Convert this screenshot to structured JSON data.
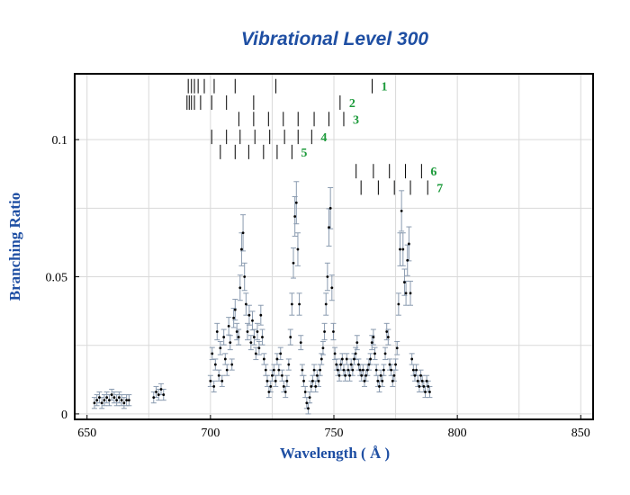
{
  "chart_data": {
    "type": "scatter",
    "title": "Vibrational Level 300",
    "xlabel": "Wavelength ( Å )",
    "ylabel": "Branching Ratio",
    "xlim": [
      645,
      855
    ],
    "ylim": [
      -0.002,
      0.124
    ],
    "xticks": [
      "650",
      "700",
      "750",
      "800",
      "850"
    ],
    "yticks": [
      "0",
      "0.05",
      "0.1"
    ],
    "grid": true,
    "colors": {
      "title": "#1f4fa3",
      "axis_label": "#1f4fa3",
      "point": "#000000",
      "errorbar": "#8a9bb0",
      "group_label": "#1e9b3c",
      "grid": "#d9d9d9"
    },
    "line_groups": [
      {
        "label": "1",
        "y": 0.1195,
        "x": [
          691,
          692.3,
          693.5,
          695,
          697.5,
          701.5,
          710,
          726.5,
          765.5
        ]
      },
      {
        "label": "2",
        "y": 0.1135,
        "x": [
          690.5,
          691.4,
          692.3,
          693.5,
          696,
          700.5,
          706.5,
          717.5,
          752.5
        ]
      },
      {
        "label": "3",
        "y": 0.1075,
        "x": [
          711.5,
          717.5,
          723.5,
          729.5,
          735.5,
          742,
          748,
          754
        ]
      },
      {
        "label": "4",
        "y": 0.101,
        "x": [
          700.5,
          706.5,
          712,
          718,
          724,
          730,
          735.5,
          741
        ]
      },
      {
        "label": "5",
        "y": 0.0955,
        "x": [
          704,
          710,
          715.5,
          721.5,
          727,
          733
        ]
      },
      {
        "label": "6",
        "y": 0.0885,
        "x": [
          759,
          766,
          772.5,
          779,
          785.5
        ]
      },
      {
        "label": "7",
        "y": 0.0825,
        "x": [
          761,
          768,
          774.5,
          781,
          788
        ]
      }
    ],
    "series": [
      {
        "values": [
          [
            653,
            0.004
          ],
          [
            654,
            0.005
          ],
          [
            655,
            0.006
          ],
          [
            656,
            0.004
          ],
          [
            657,
            0.005
          ],
          [
            658,
            0.006
          ],
          [
            659,
            0.005
          ],
          [
            660,
            0.007
          ],
          [
            661,
            0.006
          ],
          [
            662,
            0.005
          ],
          [
            663,
            0.006
          ],
          [
            664,
            0.005
          ],
          [
            665,
            0.004
          ],
          [
            666,
            0.005
          ],
          [
            667,
            0.005
          ],
          [
            677,
            0.006
          ],
          [
            678,
            0.008
          ],
          [
            679,
            0.007
          ],
          [
            680,
            0.009
          ],
          [
            681,
            0.007
          ],
          [
            700,
            0.012
          ],
          [
            700.7,
            0.022
          ],
          [
            701.4,
            0.01
          ],
          [
            702,
            0.018
          ],
          [
            702.7,
            0.03
          ],
          [
            703.4,
            0.014
          ],
          [
            704,
            0.024
          ],
          [
            704.7,
            0.012
          ],
          [
            705.4,
            0.028
          ],
          [
            706,
            0.02
          ],
          [
            706.7,
            0.016
          ],
          [
            707.4,
            0.032
          ],
          [
            708,
            0.026
          ],
          [
            708.7,
            0.018
          ],
          [
            709.4,
            0.035
          ],
          [
            710,
            0.038
          ],
          [
            710.7,
            0.03
          ],
          [
            711.4,
            0.028
          ],
          [
            712,
            0.046
          ],
          [
            712.6,
            0.06
          ],
          [
            713.2,
            0.066
          ],
          [
            713.8,
            0.05
          ],
          [
            714.4,
            0.04
          ],
          [
            715,
            0.03
          ],
          [
            715.7,
            0.036
          ],
          [
            716.4,
            0.026
          ],
          [
            717,
            0.034
          ],
          [
            717.7,
            0.028
          ],
          [
            718.4,
            0.022
          ],
          [
            719,
            0.03
          ],
          [
            719.7,
            0.024
          ],
          [
            720.4,
            0.036
          ],
          [
            721,
            0.028
          ],
          [
            721.7,
            0.02
          ],
          [
            722.4,
            0.016
          ],
          [
            723,
            0.012
          ],
          [
            723.7,
            0.008
          ],
          [
            724.4,
            0.01
          ],
          [
            725,
            0.014
          ],
          [
            725.7,
            0.016
          ],
          [
            726.4,
            0.012
          ],
          [
            727,
            0.02
          ],
          [
            727.7,
            0.016
          ],
          [
            728.4,
            0.022
          ],
          [
            729,
            0.014
          ],
          [
            729.7,
            0.01
          ],
          [
            730.4,
            0.008
          ],
          [
            731,
            0.012
          ],
          [
            731.7,
            0.018
          ],
          [
            732.4,
            0.028
          ],
          [
            733,
            0.04
          ],
          [
            733.6,
            0.055
          ],
          [
            734.2,
            0.072
          ],
          [
            734.8,
            0.077
          ],
          [
            735.4,
            0.06
          ],
          [
            736,
            0.04
          ],
          [
            736.6,
            0.026
          ],
          [
            737.2,
            0.016
          ],
          [
            737.8,
            0.012
          ],
          [
            738.4,
            0.008
          ],
          [
            739,
            0.004
          ],
          [
            739.6,
            0.002
          ],
          [
            740.2,
            0.006
          ],
          [
            740.8,
            0.01
          ],
          [
            741.4,
            0.012
          ],
          [
            742,
            0.016
          ],
          [
            742.6,
            0.01
          ],
          [
            743.2,
            0.014
          ],
          [
            743.8,
            0.012
          ],
          [
            744.4,
            0.016
          ],
          [
            745,
            0.02
          ],
          [
            745.6,
            0.024
          ],
          [
            746.2,
            0.03
          ],
          [
            746.8,
            0.04
          ],
          [
            747.4,
            0.05
          ],
          [
            748,
            0.068
          ],
          [
            748.6,
            0.075
          ],
          [
            749.2,
            0.046
          ],
          [
            749.8,
            0.03
          ],
          [
            750.4,
            0.022
          ],
          [
            751,
            0.018
          ],
          [
            751.6,
            0.016
          ],
          [
            752.2,
            0.014
          ],
          [
            752.8,
            0.018
          ],
          [
            753.4,
            0.02
          ],
          [
            754,
            0.016
          ],
          [
            754.6,
            0.014
          ],
          [
            755.2,
            0.02
          ],
          [
            755.8,
            0.016
          ],
          [
            756.4,
            0.014
          ],
          [
            757,
            0.018
          ],
          [
            757.6,
            0.016
          ],
          [
            758.2,
            0.02
          ],
          [
            758.8,
            0.022
          ],
          [
            759.4,
            0.026
          ],
          [
            760,
            0.018
          ],
          [
            760.6,
            0.016
          ],
          [
            761.2,
            0.014
          ],
          [
            761.8,
            0.016
          ],
          [
            762.4,
            0.012
          ],
          [
            763,
            0.014
          ],
          [
            763.6,
            0.016
          ],
          [
            764.2,
            0.018
          ],
          [
            764.8,
            0.02
          ],
          [
            765.4,
            0.026
          ],
          [
            766,
            0.028
          ],
          [
            766.6,
            0.022
          ],
          [
            767.2,
            0.016
          ],
          [
            767.8,
            0.012
          ],
          [
            768.4,
            0.01
          ],
          [
            769,
            0.014
          ],
          [
            769.6,
            0.012
          ],
          [
            770.2,
            0.016
          ],
          [
            770.8,
            0.022
          ],
          [
            771.4,
            0.03
          ],
          [
            772,
            0.028
          ],
          [
            772.6,
            0.018
          ],
          [
            773.2,
            0.016
          ],
          [
            773.8,
            0.012
          ],
          [
            774.4,
            0.014
          ],
          [
            775,
            0.018
          ],
          [
            775.6,
            0.024
          ],
          [
            776.2,
            0.04
          ],
          [
            776.8,
            0.06
          ],
          [
            777.4,
            0.074
          ],
          [
            778,
            0.06
          ],
          [
            778.6,
            0.048
          ],
          [
            779.2,
            0.044
          ],
          [
            779.8,
            0.056
          ],
          [
            780.4,
            0.062
          ],
          [
            781,
            0.044
          ],
          [
            781.6,
            0.02
          ],
          [
            782.2,
            0.016
          ],
          [
            782.8,
            0.014
          ],
          [
            783.4,
            0.016
          ],
          [
            784,
            0.012
          ],
          [
            784.6,
            0.01
          ],
          [
            785.2,
            0.014
          ],
          [
            785.8,
            0.012
          ],
          [
            786.4,
            0.01
          ],
          [
            787,
            0.008
          ],
          [
            787.6,
            0.012
          ],
          [
            788.2,
            0.01
          ],
          [
            788.8,
            0.008
          ]
        ]
      }
    ]
  }
}
